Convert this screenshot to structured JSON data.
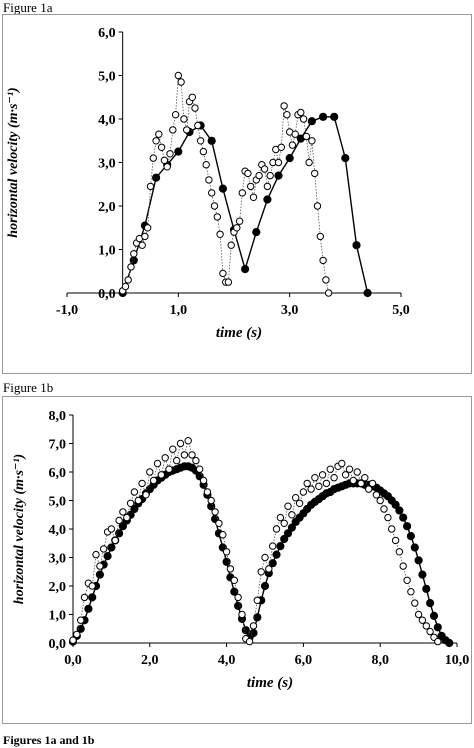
{
  "figure_a": {
    "label": "Figure 1a",
    "chart_data": {
      "type": "scatter",
      "xlabel": "time (s)",
      "ylabel": "horizontal velocity (m·s⁻¹)",
      "xlim": [
        -1.0,
        5.0
      ],
      "ylim": [
        0.0,
        6.0
      ],
      "x_ticks": [
        -1.0,
        1.0,
        3.0,
        5.0
      ],
      "x_tick_labels": [
        "-1,0",
        "1,0",
        "3,0",
        "5,0"
      ],
      "y_ticks": [
        0,
        1,
        2,
        3,
        4,
        5,
        6
      ],
      "y_tick_labels": [
        "0,0",
        "1,0",
        "2,0",
        "3,0",
        "4,0",
        "5,0",
        "6,0"
      ],
      "grid": false,
      "series": [
        {
          "style": "filled-markers-solid-line",
          "x": [
            0.0,
            0.2,
            0.4,
            0.6,
            0.8,
            1.0,
            1.2,
            1.4,
            1.6,
            1.8,
            2.0,
            2.2,
            2.4,
            2.6,
            2.8,
            3.0,
            3.2,
            3.4,
            3.6,
            3.8,
            4.0,
            4.2,
            4.4
          ],
          "y": [
            0.0,
            0.75,
            1.55,
            2.65,
            2.95,
            3.25,
            3.7,
            3.85,
            3.5,
            2.4,
            1.45,
            0.55,
            1.4,
            2.15,
            2.7,
            3.1,
            3.55,
            3.95,
            4.05,
            4.05,
            3.1,
            1.1,
            0.0
          ]
        },
        {
          "style": "open-markers-dotted-line",
          "x": [
            0.0,
            0.05,
            0.1,
            0.15,
            0.2,
            0.25,
            0.3,
            0.35,
            0.4,
            0.45,
            0.5,
            0.55,
            0.6,
            0.65,
            0.7,
            0.75,
            0.8,
            0.85,
            0.9,
            0.95,
            1.0,
            1.05,
            1.1,
            1.15,
            1.2,
            1.25,
            1.3,
            1.35,
            1.4,
            1.45,
            1.5,
            1.55,
            1.6,
            1.65,
            1.7,
            1.75,
            1.8,
            1.85,
            1.9,
            1.95,
            2.0,
            2.05,
            2.1,
            2.15,
            2.2,
            2.25,
            2.3,
            2.35,
            2.4,
            2.45,
            2.5,
            2.55,
            2.6,
            2.65,
            2.7,
            2.75,
            2.8,
            2.85,
            2.9,
            2.95,
            3.0,
            3.05,
            3.1,
            3.15,
            3.2,
            3.25,
            3.3,
            3.35,
            3.4,
            3.45,
            3.5,
            3.55,
            3.6,
            3.65,
            3.7
          ],
          "y": [
            0.05,
            0.15,
            0.3,
            0.6,
            0.9,
            1.15,
            1.25,
            1.1,
            1.3,
            1.5,
            2.45,
            3.1,
            3.5,
            3.65,
            3.35,
            3.05,
            2.9,
            3.2,
            3.75,
            4.1,
            5.0,
            4.85,
            4.0,
            3.75,
            4.4,
            4.5,
            4.25,
            3.85,
            3.5,
            3.25,
            2.95,
            2.6,
            2.3,
            2.0,
            1.75,
            1.35,
            0.45,
            0.25,
            0.25,
            1.1,
            1.4,
            1.5,
            1.65,
            2.3,
            2.8,
            2.75,
            2.45,
            2.2,
            2.6,
            2.7,
            2.95,
            2.85,
            2.45,
            2.7,
            3.0,
            3.3,
            3.0,
            3.35,
            4.3,
            4.1,
            3.7,
            3.4,
            3.65,
            4.1,
            4.15,
            4.0,
            3.6,
            3.0,
            3.5,
            2.75,
            2.0,
            1.3,
            0.75,
            0.3,
            0.0
          ]
        }
      ]
    }
  },
  "figure_b": {
    "label": "Figure 1b",
    "chart_data": {
      "type": "scatter",
      "xlabel": "time (s)",
      "ylabel": "horizontal velocity (m·s⁻¹)",
      "xlim": [
        0.0,
        10.0
      ],
      "ylim": [
        0.0,
        8.0
      ],
      "x_ticks": [
        0,
        2,
        4,
        6,
        8,
        10
      ],
      "x_tick_labels": [
        "0,0",
        "2,0",
        "4,0",
        "6,0",
        "8,0",
        "10,0"
      ],
      "y_ticks": [
        0,
        1,
        2,
        3,
        4,
        5,
        6,
        7,
        8
      ],
      "y_tick_labels": [
        "0,0",
        "1,0",
        "2,0",
        "3,0",
        "4,0",
        "5,0",
        "6,0",
        "7,0",
        "8,0"
      ],
      "grid": false,
      "series": [
        {
          "style": "filled-markers-solid-line",
          "x": [
            0.0,
            0.1,
            0.2,
            0.3,
            0.4,
            0.5,
            0.6,
            0.7,
            0.8,
            0.9,
            1.0,
            1.1,
            1.2,
            1.3,
            1.4,
            1.5,
            1.6,
            1.7,
            1.8,
            1.9,
            2.0,
            2.1,
            2.2,
            2.3,
            2.4,
            2.5,
            2.6,
            2.7,
            2.8,
            2.9,
            3.0,
            3.1,
            3.2,
            3.3,
            3.4,
            3.5,
            3.6,
            3.7,
            3.8,
            3.9,
            4.0,
            4.1,
            4.2,
            4.3,
            4.4,
            4.5,
            4.6,
            4.7,
            4.8,
            4.9,
            5.0,
            5.1,
            5.2,
            5.3,
            5.4,
            5.5,
            5.6,
            5.7,
            5.8,
            5.9,
            6.0,
            6.1,
            6.2,
            6.3,
            6.4,
            6.5,
            6.6,
            6.7,
            6.8,
            6.9,
            7.0,
            7.1,
            7.2,
            7.3,
            7.4,
            7.5,
            7.6,
            7.7,
            7.8,
            7.9,
            8.0,
            8.1,
            8.2,
            8.3,
            8.4,
            8.5,
            8.6,
            8.7,
            8.8,
            8.9,
            9.0,
            9.1,
            9.2,
            9.3,
            9.4,
            9.5,
            9.6,
            9.7,
            9.8
          ],
          "y": [
            0.05,
            0.25,
            0.5,
            0.8,
            1.2,
            1.6,
            2.0,
            2.4,
            2.75,
            3.05,
            3.35,
            3.6,
            3.85,
            4.1,
            4.3,
            4.5,
            4.7,
            4.9,
            5.05,
            5.25,
            5.4,
            5.55,
            5.7,
            5.8,
            5.9,
            6.0,
            6.05,
            6.1,
            6.15,
            6.2,
            6.2,
            6.15,
            6.05,
            5.85,
            5.55,
            5.2,
            4.8,
            4.35,
            3.85,
            3.35,
            2.85,
            2.3,
            1.8,
            1.3,
            0.85,
            0.45,
            0.2,
            0.35,
            0.9,
            1.5,
            2.0,
            2.45,
            2.8,
            3.1,
            3.4,
            3.65,
            3.85,
            4.05,
            4.25,
            4.4,
            4.55,
            4.7,
            4.85,
            4.95,
            5.05,
            5.15,
            5.25,
            5.3,
            5.4,
            5.45,
            5.5,
            5.55,
            5.6,
            5.6,
            5.6,
            5.6,
            5.55,
            5.55,
            5.5,
            5.45,
            5.35,
            5.25,
            5.15,
            5.0,
            4.85,
            4.65,
            4.4,
            4.1,
            3.75,
            3.35,
            2.9,
            2.4,
            1.9,
            1.4,
            0.95,
            0.55,
            0.25,
            0.1,
            0.0
          ]
        },
        {
          "style": "open-markers-dotted-line",
          "x": [
            0.0,
            0.1,
            0.2,
            0.3,
            0.4,
            0.5,
            0.6,
            0.7,
            0.8,
            0.9,
            1.0,
            1.1,
            1.2,
            1.3,
            1.4,
            1.5,
            1.6,
            1.7,
            1.8,
            1.9,
            2.0,
            2.1,
            2.2,
            2.3,
            2.4,
            2.5,
            2.6,
            2.7,
            2.8,
            2.9,
            3.0,
            3.1,
            3.2,
            3.3,
            3.4,
            3.5,
            3.6,
            3.7,
            3.8,
            3.9,
            4.0,
            4.1,
            4.2,
            4.3,
            4.4,
            4.5,
            4.6,
            4.7,
            4.8,
            4.9,
            5.0,
            5.1,
            5.2,
            5.3,
            5.4,
            5.5,
            5.6,
            5.7,
            5.8,
            5.9,
            6.0,
            6.1,
            6.2,
            6.3,
            6.4,
            6.5,
            6.6,
            6.7,
            6.8,
            6.9,
            7.0,
            7.1,
            7.2,
            7.3,
            7.4,
            7.5,
            7.6,
            7.7,
            7.8,
            7.9,
            8.0,
            8.1,
            8.2,
            8.3,
            8.4,
            8.5,
            8.6,
            8.7,
            8.8,
            8.9,
            9.0,
            9.1,
            9.2,
            9.3,
            9.4,
            9.5
          ],
          "y": [
            0.1,
            0.3,
            0.8,
            1.6,
            2.1,
            2.0,
            3.1,
            2.7,
            3.3,
            3.9,
            4.0,
            3.6,
            4.3,
            4.6,
            4.4,
            4.9,
            5.3,
            5.0,
            5.6,
            5.2,
            6.0,
            5.7,
            6.3,
            5.9,
            6.5,
            6.1,
            6.8,
            6.4,
            7.0,
            6.6,
            7.1,
            6.6,
            6.4,
            6.1,
            5.7,
            5.3,
            5.0,
            4.6,
            4.2,
            3.8,
            3.2,
            2.6,
            2.2,
            1.6,
            1.0,
            0.15,
            0.05,
            0.6,
            1.5,
            2.5,
            3.0,
            2.6,
            3.4,
            4.0,
            4.4,
            4.2,
            4.8,
            4.5,
            5.1,
            4.9,
            5.3,
            5.6,
            5.4,
            5.8,
            5.5,
            5.9,
            5.6,
            6.1,
            5.8,
            6.2,
            6.3,
            5.9,
            6.1,
            5.7,
            6.0,
            5.6,
            5.8,
            5.4,
            5.6,
            5.2,
            5.0,
            4.7,
            4.4,
            4.0,
            3.6,
            3.2,
            2.7,
            2.2,
            1.8,
            1.4,
            1.0,
            0.8,
            0.6,
            0.4,
            0.2,
            0.05
          ]
        }
      ]
    }
  },
  "caption": "Figures 1a and 1b"
}
